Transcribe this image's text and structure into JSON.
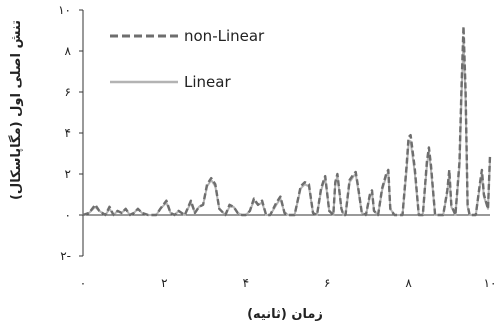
{
  "chart_data": {
    "type": "line",
    "title": "",
    "xlabel": "زمان (ثانیه)",
    "ylabel": "تنش اصلی اول (مگاپاسکال)",
    "xlim": [
      0,
      10
    ],
    "ylim": [
      -2,
      10
    ],
    "x_ticks": [
      0,
      2,
      4,
      6,
      8,
      10
    ],
    "x_tick_labels": [
      "۰",
      "۲",
      "۴",
      "۶",
      "۸",
      "۱۰"
    ],
    "y_ticks": [
      -2,
      0,
      2,
      4,
      6,
      8,
      10
    ],
    "y_tick_labels": [
      "۲-",
      "۰",
      "۲",
      "۴",
      "۶",
      "۸",
      "۱۰"
    ],
    "grid": false,
    "legend_position": "top-left",
    "series": [
      {
        "name": "non-Linear",
        "style": "dashed",
        "color": "#6e6e6e",
        "x": [
          0,
          0.15,
          0.3,
          0.4,
          0.55,
          0.65,
          0.75,
          0.85,
          0.95,
          1.05,
          1.15,
          1.25,
          1.35,
          1.45,
          1.6,
          1.8,
          1.9,
          2.05,
          2.15,
          2.25,
          2.35,
          2.5,
          2.65,
          2.75,
          2.85,
          2.95,
          3.05,
          3.15,
          3.25,
          3.35,
          3.5,
          3.6,
          3.7,
          3.8,
          3.9,
          4.0,
          4.1,
          4.2,
          4.3,
          4.4,
          4.5,
          4.6,
          4.75,
          4.85,
          4.95,
          5.05,
          5.2,
          5.35,
          5.45,
          5.55,
          5.65,
          5.75,
          5.85,
          5.9,
          5.95,
          6.05,
          6.15,
          6.2,
          6.25,
          6.35,
          6.4,
          6.45,
          6.55,
          6.65,
          6.7,
          6.75,
          6.85,
          6.95,
          7.05,
          7.1,
          7.15,
          7.25,
          7.35,
          7.45,
          7.5,
          7.55,
          7.65,
          7.75,
          7.85,
          7.95,
          8.0,
          8.05,
          8.15,
          8.25,
          8.35,
          8.45,
          8.5,
          8.55,
          8.65,
          8.75,
          8.85,
          8.95,
          9.0,
          9.05,
          9.15,
          9.25,
          9.3,
          9.35,
          9.4,
          9.45,
          9.5,
          9.55,
          9.65,
          9.75,
          9.8,
          9.85,
          9.95,
          10.0
        ],
        "y": [
          0,
          0.1,
          0.5,
          0.2,
          0,
          0.4,
          0,
          0.2,
          0.1,
          0.3,
          0,
          0.1,
          0.3,
          0.1,
          0,
          0,
          0.3,
          0.7,
          0.1,
          0,
          0.2,
          0,
          0.7,
          0.1,
          0.4,
          0.5,
          1.5,
          1.8,
          1.5,
          0.3,
          0,
          0.5,
          0.4,
          0.1,
          0,
          0,
          0.2,
          0.8,
          0.5,
          0.7,
          0,
          0,
          0.6,
          0.9,
          0.1,
          0,
          0,
          1.4,
          1.6,
          1.5,
          0.1,
          0,
          1.3,
          1.6,
          1.9,
          0.2,
          0,
          1.6,
          2.0,
          0.3,
          0,
          0,
          1.7,
          2.0,
          2.1,
          1.5,
          0.1,
          0,
          1.0,
          1.2,
          0.2,
          0,
          1.3,
          2.0,
          2.2,
          0.3,
          0,
          0,
          0,
          2.4,
          3.8,
          3.9,
          2.3,
          0,
          0,
          2.6,
          3.3,
          2.4,
          0,
          0,
          0,
          1.2,
          2.2,
          0.5,
          0,
          2.6,
          6.2,
          9.2,
          6.0,
          0.5,
          0,
          0,
          0,
          1.5,
          2.2,
          1.0,
          0.3,
          2.9
        ],
        "_note_markup": "x/y pairs for dashed series"
      },
      {
        "name": "Linear",
        "style": "solid",
        "color": "#b3b3b3",
        "x": [
          0,
          0.15,
          0.3,
          0.4,
          0.55,
          0.65,
          0.75,
          0.85,
          0.95,
          1.05,
          1.15,
          1.25,
          1.35,
          1.45,
          1.6,
          1.8,
          1.9,
          2.05,
          2.15,
          2.25,
          2.35,
          2.5,
          2.65,
          2.75,
          2.85,
          2.95,
          3.05,
          3.15,
          3.25,
          3.35,
          3.5,
          3.6,
          3.7,
          3.8,
          3.9,
          4.0,
          4.1,
          4.2,
          4.3,
          4.4,
          4.5,
          4.6,
          4.75,
          4.85,
          4.95,
          5.05,
          5.2,
          5.35,
          5.45,
          5.55,
          5.65,
          5.75,
          5.85,
          5.9,
          5.95,
          6.05,
          6.15,
          6.2,
          6.25,
          6.35,
          6.4,
          6.45,
          6.55,
          6.65,
          6.7,
          6.75,
          6.85,
          6.95,
          7.05,
          7.1,
          7.15,
          7.25,
          7.35,
          7.45,
          7.5,
          7.55,
          7.65,
          7.75,
          7.85,
          7.95,
          8.0,
          8.05,
          8.15,
          8.25,
          8.35,
          8.45,
          8.5,
          8.55,
          8.65,
          8.75,
          8.85,
          8.95,
          9.0,
          9.05,
          9.15,
          9.25,
          9.3,
          9.35,
          9.4,
          9.45,
          9.5,
          9.55,
          9.65,
          9.75,
          9.8,
          9.85,
          9.95,
          10.0
        ],
        "y": [
          0,
          0.1,
          0.4,
          0.2,
          0,
          0.3,
          0,
          0.2,
          0.1,
          0.3,
          0,
          0.1,
          0.3,
          0.1,
          0,
          0,
          0.3,
          0.6,
          0.1,
          0,
          0.2,
          0,
          0.6,
          0.1,
          0.4,
          0.5,
          1.4,
          1.7,
          1.4,
          0.3,
          0,
          0.4,
          0.4,
          0.1,
          0,
          0,
          0.2,
          0.7,
          0.5,
          0.6,
          0,
          0,
          0.5,
          0.8,
          0.1,
          0,
          0,
          1.3,
          1.5,
          1.4,
          0.1,
          0,
          1.2,
          1.5,
          1.8,
          0.2,
          0,
          1.5,
          1.9,
          0.3,
          0,
          0,
          1.6,
          1.9,
          2.0,
          1.4,
          0.1,
          0,
          0.9,
          1.1,
          0.2,
          0,
          1.2,
          1.9,
          2.1,
          0.3,
          0,
          0,
          0,
          2.2,
          3.5,
          3.6,
          2.1,
          0,
          0,
          2.4,
          3.1,
          2.2,
          0,
          0,
          0,
          1.1,
          2.0,
          0.4,
          0,
          2.4,
          5.8,
          8.6,
          5.6,
          0.4,
          0,
          0,
          0,
          1.4,
          2.0,
          0.9,
          0.3,
          2.7
        ]
      }
    ]
  }
}
